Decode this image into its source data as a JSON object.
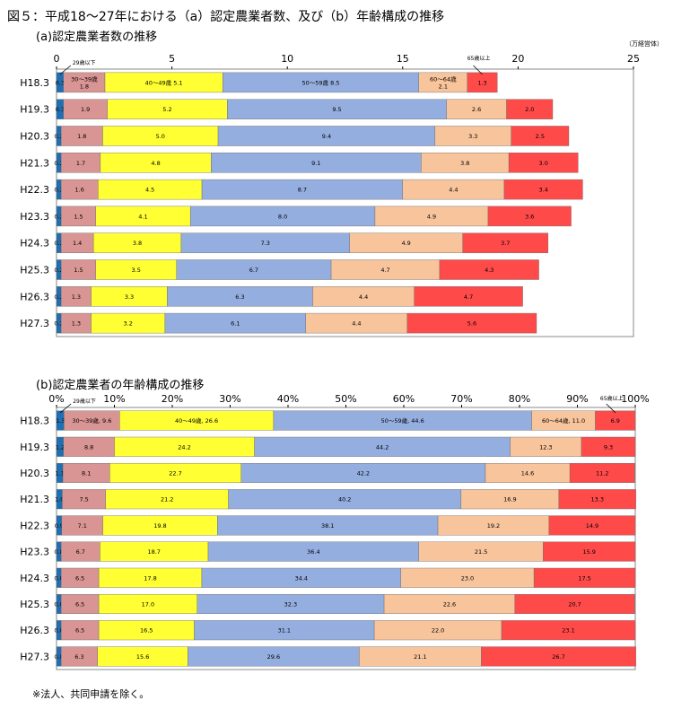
{
  "figure_title": "図５：平成18～27年における（a）認定農業者数、及び（b）年齢構成の推移",
  "footnote": "※法人、共同申請を除く。",
  "colors": {
    "le29": "#1f6fb2",
    "a30_39": "#d99594",
    "a40_49": "#ffff33",
    "a50_59": "#95aee0",
    "a60_64": "#f8c49c",
    "a65plus": "#ff4a4a"
  },
  "chart_data": [
    {
      "id": "a",
      "type": "bar",
      "orientation": "horizontal",
      "stacked": true,
      "title": "(a)認定農業者数の推移",
      "unit": "（万経営体）",
      "xlim": [
        0,
        25
      ],
      "xticks": [
        0,
        5,
        10,
        15,
        20,
        25
      ],
      "grid": false,
      "categories": [
        "H18.3",
        "H19.3",
        "H20.3",
        "H21.3",
        "H22.3",
        "H23.3",
        "H24.3",
        "H25.3",
        "H26.3",
        "H27.3"
      ],
      "series": [
        {
          "name": "29歳以下",
          "color_key": "le29",
          "values": [
            0.3,
            0.3,
            0.2,
            0.2,
            0.2,
            0.2,
            0.2,
            0.2,
            0.2,
            0.2
          ]
        },
        {
          "name": "30～39歳",
          "color_key": "a30_39",
          "values": [
            1.8,
            1.9,
            1.8,
            1.7,
            1.6,
            1.5,
            1.4,
            1.5,
            1.3,
            1.3
          ]
        },
        {
          "name": "40～49歳",
          "color_key": "a40_49",
          "values": [
            5.1,
            5.2,
            5.0,
            4.8,
            4.5,
            4.1,
            3.8,
            3.5,
            3.3,
            3.2
          ]
        },
        {
          "name": "50～59歳",
          "color_key": "a50_59",
          "values": [
            8.5,
            9.5,
            9.4,
            9.1,
            8.7,
            8.0,
            7.3,
            6.7,
            6.3,
            6.1
          ]
        },
        {
          "name": "60～64歳",
          "color_key": "a60_64",
          "values": [
            2.1,
            2.6,
            3.3,
            3.8,
            4.4,
            4.9,
            4.9,
            4.7,
            4.4,
            4.4
          ]
        },
        {
          "name": "65歳以上",
          "color_key": "a65plus",
          "values": [
            1.3,
            2.0,
            2.5,
            3.0,
            3.4,
            3.6,
            3.7,
            4.3,
            4.7,
            5.6
          ]
        }
      ],
      "first_row_labels": [
        {
          "text": "0.3",
          "series": 0
        },
        {
          "text": "30～39歳\n1.8",
          "series": 1
        },
        {
          "text": "40～49歳 5.1",
          "series": 2
        },
        {
          "text": "50～59歳 8.5",
          "series": 3
        },
        {
          "text": "60～64歳\n2.1",
          "series": 4
        },
        {
          "text": "1.3",
          "series": 5
        }
      ],
      "annotations": [
        "29歳以下",
        "65歳以上"
      ]
    },
    {
      "id": "b",
      "type": "bar",
      "orientation": "horizontal",
      "stacked": true,
      "percent": true,
      "title": "(b)認定農業者の年齢構成の推移",
      "xlim": [
        0,
        100
      ],
      "xticks": [
        "0%",
        "10%",
        "20%",
        "30%",
        "40%",
        "50%",
        "60%",
        "70%",
        "80%",
        "90%",
        "100%"
      ],
      "grid": false,
      "categories": [
        "H18.3",
        "H19.3",
        "H20.3",
        "H21.3",
        "H22.3",
        "H23.3",
        "H24.3",
        "H25.3",
        "H26.3",
        "H27.3"
      ],
      "series": [
        {
          "name": "29歳以下",
          "color_key": "le29",
          "values": [
            1.3,
            1.2,
            1.1,
            1.0,
            0.9,
            0.8,
            0.8,
            0.8,
            0.8,
            0.8
          ]
        },
        {
          "name": "30～39歳",
          "color_key": "a30_39",
          "values": [
            9.6,
            8.8,
            8.1,
            7.5,
            7.1,
            6.7,
            6.5,
            6.5,
            6.5,
            6.3
          ]
        },
        {
          "name": "40～49歳",
          "color_key": "a40_49",
          "values": [
            26.6,
            24.2,
            22.7,
            21.2,
            19.8,
            18.7,
            17.8,
            17.0,
            16.5,
            15.6
          ]
        },
        {
          "name": "50～59歳",
          "color_key": "a50_59",
          "values": [
            44.6,
            44.2,
            42.2,
            40.2,
            38.1,
            36.4,
            34.4,
            32.3,
            31.1,
            29.6
          ]
        },
        {
          "name": "60～64歳",
          "color_key": "a60_64",
          "values": [
            11.0,
            12.3,
            14.6,
            16.9,
            19.2,
            21.5,
            23.0,
            22.6,
            22.0,
            21.1
          ]
        },
        {
          "name": "65歳以上",
          "color_key": "a65plus",
          "values": [
            6.9,
            9.3,
            11.2,
            13.3,
            14.9,
            15.9,
            17.5,
            20.7,
            23.1,
            26.7
          ]
        }
      ],
      "first_row_labels": [
        {
          "text": "1.3",
          "series": 0
        },
        {
          "text": "30～39歳, 9.6",
          "series": 1
        },
        {
          "text": "40～49歳, 26.6",
          "series": 2
        },
        {
          "text": "50～59歳, 44.6",
          "series": 3
        },
        {
          "text": "60～64歳, 11.0",
          "series": 4
        },
        {
          "text": "6.9",
          "series": 5
        }
      ],
      "annotations": [
        "29歳以下",
        "65歳以上"
      ]
    }
  ]
}
